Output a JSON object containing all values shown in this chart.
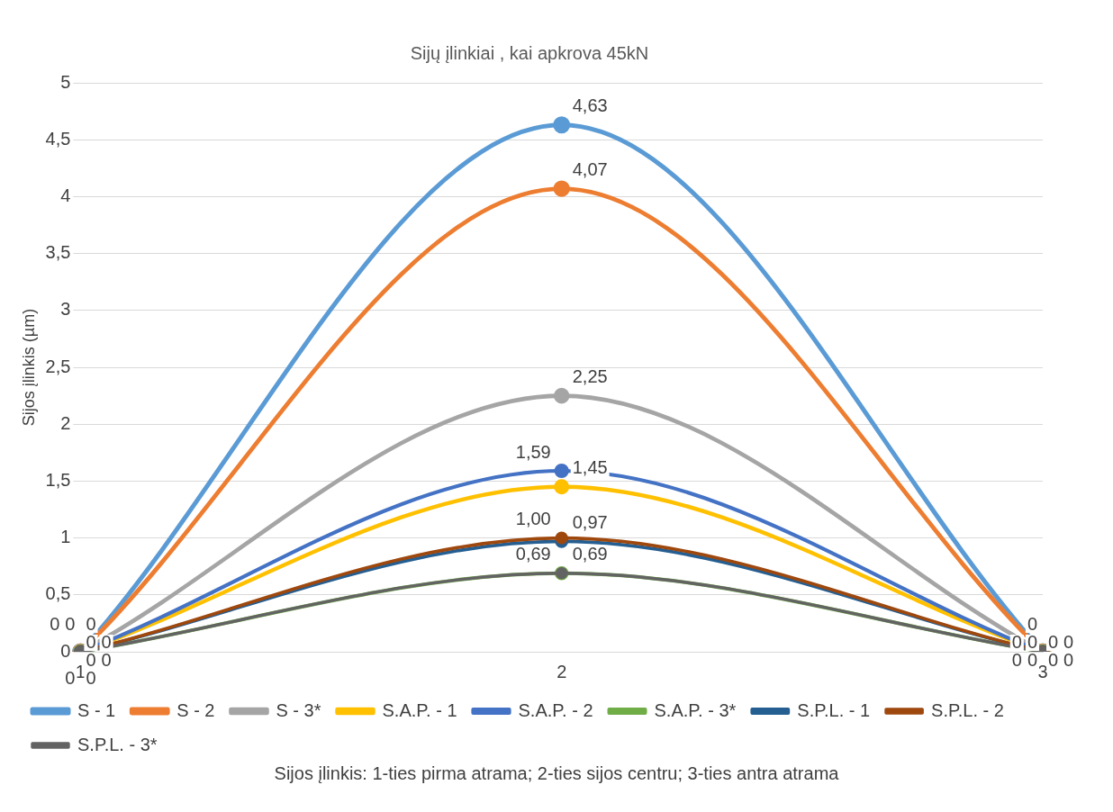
{
  "chart_data": {
    "type": "line",
    "title": "Sijų įlinkiai , kai apkrova 45kN",
    "xlabel": "Sijos įlinkis: 1-ties pirma atrama; 2-ties sijos centru; 3-ties antra atrama",
    "ylabel": "Sijos įlinkis (µm)",
    "categories": [
      "1",
      "2",
      "3"
    ],
    "series": [
      {
        "name": "S - 1",
        "color": "#5b9bd5",
        "values": [
          0,
          4.63,
          0
        ],
        "value_labels": [
          "0",
          "4,63",
          "0"
        ]
      },
      {
        "name": "S - 2",
        "color": "#ed7d31",
        "values": [
          0,
          4.07,
          0
        ],
        "value_labels": [
          "0",
          "4,07",
          "0"
        ]
      },
      {
        "name": "S - 3*",
        "color": "#a5a5a5",
        "values": [
          0,
          2.25,
          0
        ],
        "value_labels": [
          "0",
          "2,25",
          "0"
        ]
      },
      {
        "name": "S.A.P. - 1",
        "color": "#ffc000",
        "values": [
          0,
          1.45,
          0
        ],
        "value_labels": [
          "0",
          "1,45",
          "0"
        ]
      },
      {
        "name": "S.A.P. - 2",
        "color": "#4472c4",
        "values": [
          0,
          1.59,
          0
        ],
        "value_labels": [
          "0",
          "1,59",
          "0"
        ]
      },
      {
        "name": "S.A.P. - 3*",
        "color": "#70ad47",
        "values": [
          0,
          0.69,
          0
        ],
        "value_labels": [
          "0",
          "0,69",
          "0"
        ]
      },
      {
        "name": "S.P.L. - 1",
        "color": "#255e91",
        "values": [
          0,
          0.97,
          0
        ],
        "value_labels": [
          "0",
          "0,97",
          "0"
        ]
      },
      {
        "name": "S.P.L. - 2",
        "color": "#9e480e",
        "values": [
          0,
          1.0,
          0
        ],
        "value_labels": [
          "0",
          "1,00",
          "0"
        ]
      },
      {
        "name": "S.P.L. - 3*",
        "color": "#636363",
        "values": [
          0,
          0.69,
          0
        ],
        "value_labels": [
          "0",
          "0,69",
          "0"
        ]
      }
    ],
    "ylim": [
      0,
      5
    ],
    "yticks": [
      0,
      {
        "value": 0.5,
        "label": "0,5"
      },
      1,
      {
        "value": 1.5,
        "label": "1,5"
      },
      2,
      {
        "value": 2.5,
        "label": "2,5"
      },
      3,
      {
        "value": 3.5,
        "label": "3,5"
      },
      4,
      {
        "value": 4.5,
        "label": "4,5"
      },
      5
    ],
    "grid": "y",
    "legend": "bottom",
    "marker": "circle",
    "line_style": "solid"
  }
}
